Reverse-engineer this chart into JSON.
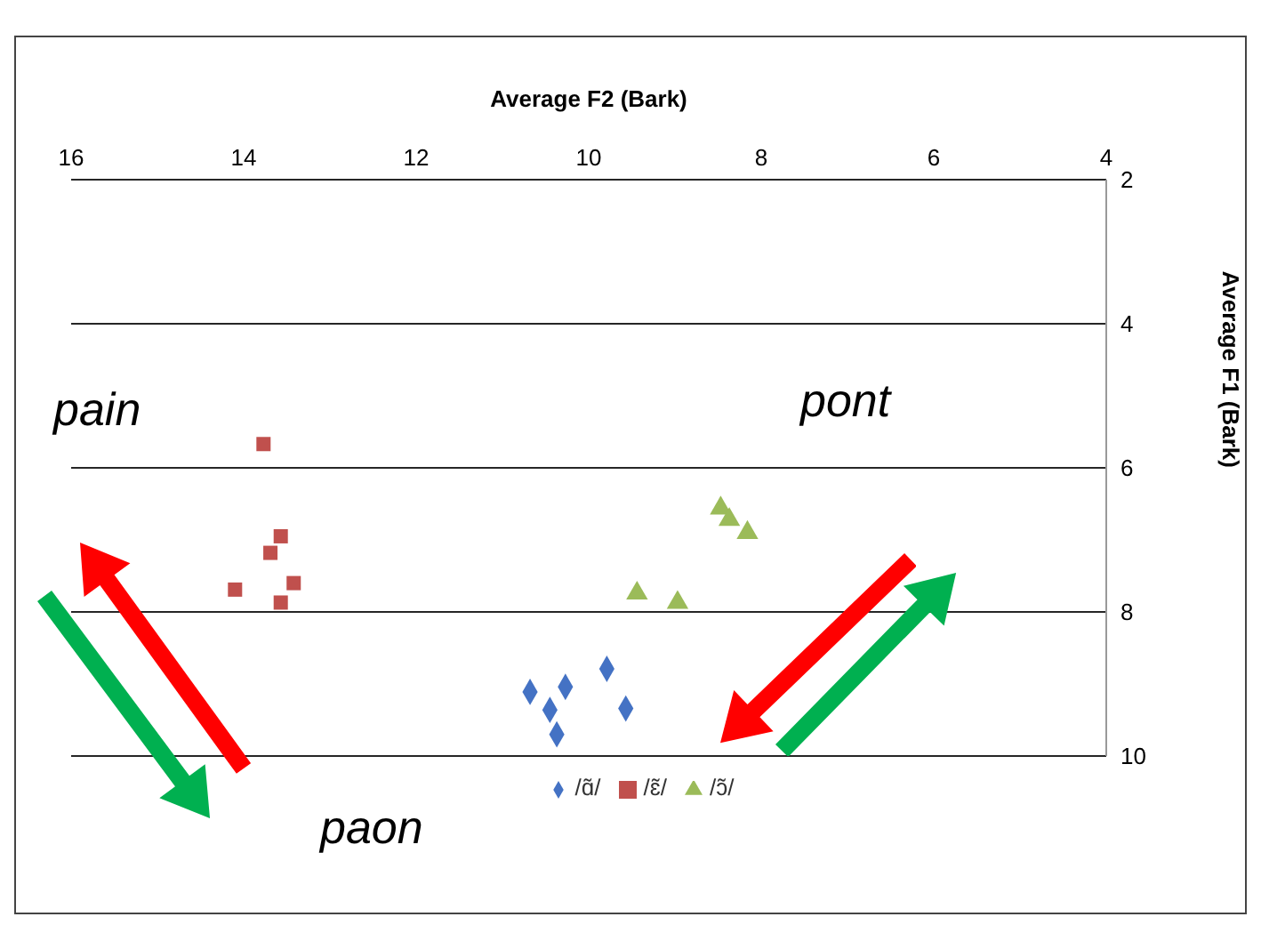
{
  "chart_data": {
    "type": "scatter",
    "xlabel": "Average F2 (Bark)",
    "ylabel": "Average F1 (Bark)",
    "xlim": [
      16,
      4
    ],
    "xticks": [
      16,
      14,
      12,
      10,
      8,
      6,
      4
    ],
    "ylim": [
      10,
      2
    ],
    "yticks": [
      2,
      4,
      6,
      8,
      10
    ],
    "grid": "y",
    "legend": "bottom",
    "annotations": [
      "pain",
      "pont",
      "paon"
    ],
    "series": [
      {
        "name": "/ɑ̃/",
        "color": "#4472c4",
        "marker": "diamond",
        "x": [
          10.68,
          10.27,
          9.79,
          10.45,
          9.57,
          10.37
        ],
        "values": [
          9.11,
          9.04,
          8.79,
          9.36,
          9.34,
          9.7
        ]
      },
      {
        "name": "/ɛ̃/",
        "color": "#c0504d",
        "marker": "square",
        "x": [
          13.77,
          13.57,
          13.69,
          14.1,
          13.42,
          13.57
        ],
        "values": [
          5.67,
          6.95,
          7.18,
          7.69,
          7.6,
          7.87
        ]
      },
      {
        "name": "/ɔ̃/",
        "color": "#9bbb59",
        "marker": "triangle",
        "x": [
          8.47,
          8.37,
          8.16,
          9.44,
          8.97
        ],
        "values": [
          6.56,
          6.72,
          6.9,
          7.74,
          7.87
        ]
      }
    ]
  }
}
